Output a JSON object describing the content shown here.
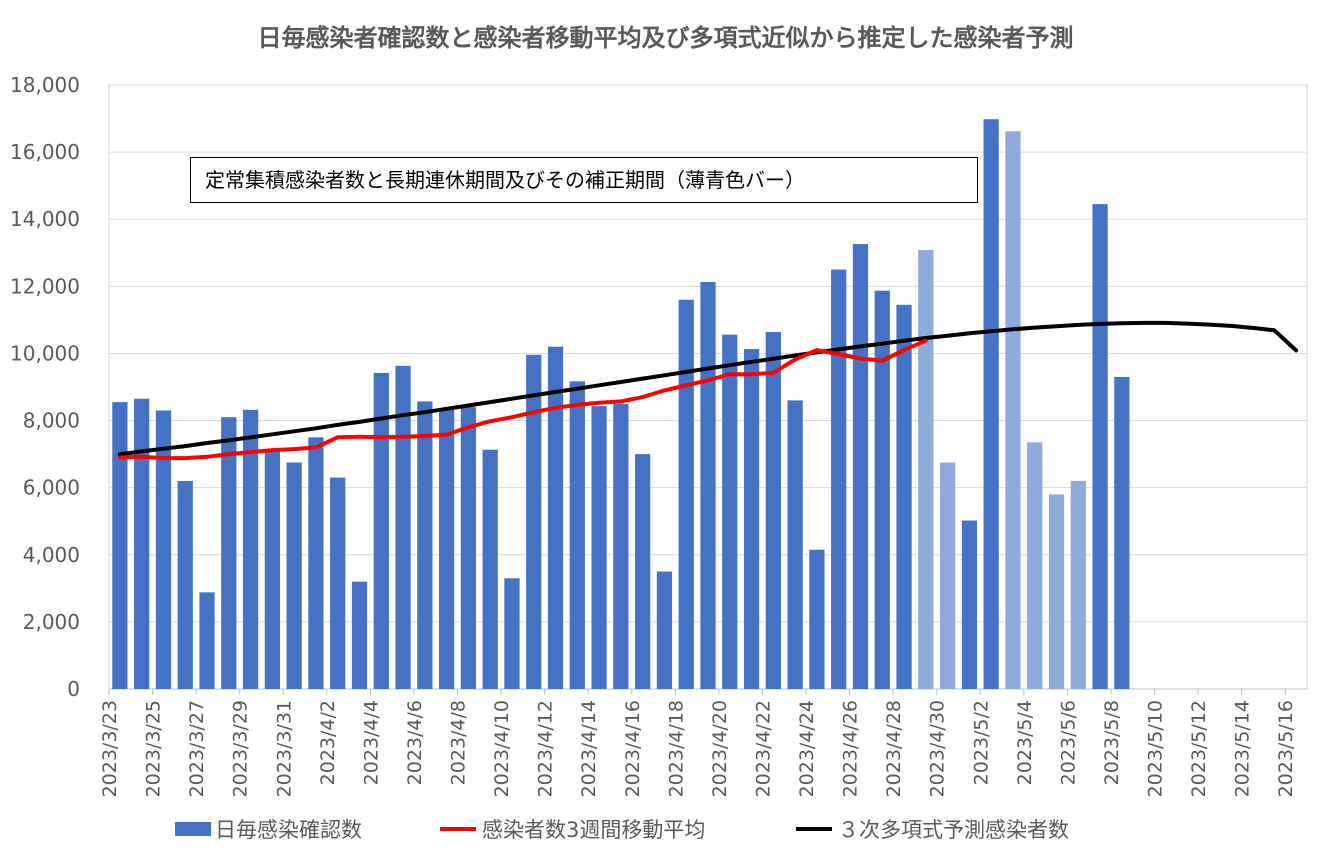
{
  "chart_data": {
    "type": "bar",
    "title": "日毎感染者確認数と感染者移動平均及び多項式近似から推定した感染者予測",
    "annotation": "定常集積感染者数と長期連休期間及びその補正期間（薄青色バー）",
    "ylim": [
      0,
      18000
    ],
    "y_ticks": [
      "0",
      "2,000",
      "4,000",
      "6,000",
      "8,000",
      "10,000",
      "12,000",
      "14,000",
      "16,000",
      "18,000"
    ],
    "categories": [
      "2023/3/23",
      "2023/3/24",
      "2023/3/25",
      "2023/3/26",
      "2023/3/27",
      "2023/3/28",
      "2023/3/29",
      "2023/3/30",
      "2023/3/31",
      "2023/4/1",
      "2023/4/2",
      "2023/4/3",
      "2023/4/4",
      "2023/4/5",
      "2023/4/6",
      "2023/4/7",
      "2023/4/8",
      "2023/4/9",
      "2023/4/10",
      "2023/4/11",
      "2023/4/12",
      "2023/4/13",
      "2023/4/14",
      "2023/4/15",
      "2023/4/16",
      "2023/4/17",
      "2023/4/18",
      "2023/4/19",
      "2023/4/20",
      "2023/4/21",
      "2023/4/22",
      "2023/4/23",
      "2023/4/24",
      "2023/4/25",
      "2023/4/26",
      "2023/4/27",
      "2023/4/28",
      "2023/4/29",
      "2023/4/30",
      "2023/5/1",
      "2023/5/2",
      "2023/5/3",
      "2023/5/4",
      "2023/5/5",
      "2023/5/6",
      "2023/5/7",
      "2023/5/8",
      "2023/5/9",
      "2023/5/10",
      "2023/5/11",
      "2023/5/12",
      "2023/5/13",
      "2023/5/14",
      "2023/5/15",
      "2023/5/16"
    ],
    "x_tick_labels": [
      "2023/3/23",
      "2023/3/25",
      "2023/3/27",
      "2023/3/29",
      "2023/3/31",
      "2023/4/2",
      "2023/4/4",
      "2023/4/6",
      "2023/4/8",
      "2023/4/10",
      "2023/4/12",
      "2023/4/14",
      "2023/4/16",
      "2023/4/18",
      "2023/4/20",
      "2023/4/22",
      "2023/4/24",
      "2023/4/26",
      "2023/4/28",
      "2023/4/30",
      "2023/5/2",
      "2023/5/4",
      "2023/5/6",
      "2023/5/8",
      "2023/5/10",
      "2023/5/12",
      "2023/5/14",
      "2023/5/16"
    ],
    "series": [
      {
        "name": "日毎感染確認数",
        "kind": "bar",
        "color": "#4472C4",
        "light_color": "#8FAADC",
        "values": [
          8550,
          8650,
          8300,
          6200,
          2880,
          8100,
          8320,
          7150,
          6750,
          7500,
          6300,
          3200,
          9420,
          9630,
          8570,
          8330,
          8400,
          7130,
          3300,
          9960,
          10200,
          9170,
          8430,
          8500,
          7000,
          3500,
          11600,
          12130,
          10560,
          10130,
          10640,
          8600,
          4150,
          12500,
          13260,
          11870,
          11450,
          13080,
          6750,
          5020,
          16980,
          16620,
          7350,
          5800,
          6200,
          14450,
          9300,
          null,
          null,
          null,
          null,
          null,
          null,
          null,
          null
        ],
        "highlighted": [
          false,
          false,
          false,
          false,
          false,
          false,
          false,
          false,
          false,
          false,
          false,
          false,
          false,
          false,
          false,
          false,
          false,
          false,
          false,
          false,
          false,
          false,
          false,
          false,
          false,
          false,
          false,
          false,
          false,
          false,
          false,
          false,
          false,
          false,
          false,
          false,
          false,
          true,
          true,
          false,
          false,
          true,
          true,
          true,
          true,
          false,
          false,
          false,
          false,
          false,
          false,
          false,
          false,
          false,
          false
        ]
      },
      {
        "name": "感染者数3週間移動平均",
        "kind": "line",
        "color": "#FF0000",
        "values": [
          6900,
          6920,
          6880,
          6880,
          6920,
          7000,
          7060,
          7120,
          7150,
          7200,
          7500,
          7520,
          7500,
          7520,
          7540,
          7580,
          7800,
          7980,
          8100,
          8250,
          8380,
          8470,
          8530,
          8570,
          8700,
          8900,
          9050,
          9200,
          9380,
          9380,
          9420,
          9820,
          10100,
          9980,
          9850,
          9780,
          10100,
          10380,
          null,
          null,
          null,
          null,
          null,
          null,
          null,
          null,
          null,
          null,
          null,
          null,
          null,
          null,
          null,
          null,
          null
        ]
      },
      {
        "name": "３次多項式予測感染者数",
        "kind": "line",
        "color": "#000000",
        "values": [
          6990,
          7080,
          7160,
          7240,
          7330,
          7410,
          7500,
          7590,
          7680,
          7770,
          7870,
          7960,
          8060,
          8160,
          8250,
          8350,
          8450,
          8550,
          8650,
          8750,
          8850,
          8950,
          9050,
          9150,
          9250,
          9350,
          9450,
          9550,
          9650,
          9750,
          9840,
          9940,
          10030,
          10120,
          10210,
          10290,
          10380,
          10460,
          10530,
          10600,
          10660,
          10720,
          10770,
          10810,
          10850,
          10880,
          10900,
          10910,
          10910,
          10890,
          10860,
          10820,
          10760,
          10690,
          10090
        ]
      }
    ]
  }
}
